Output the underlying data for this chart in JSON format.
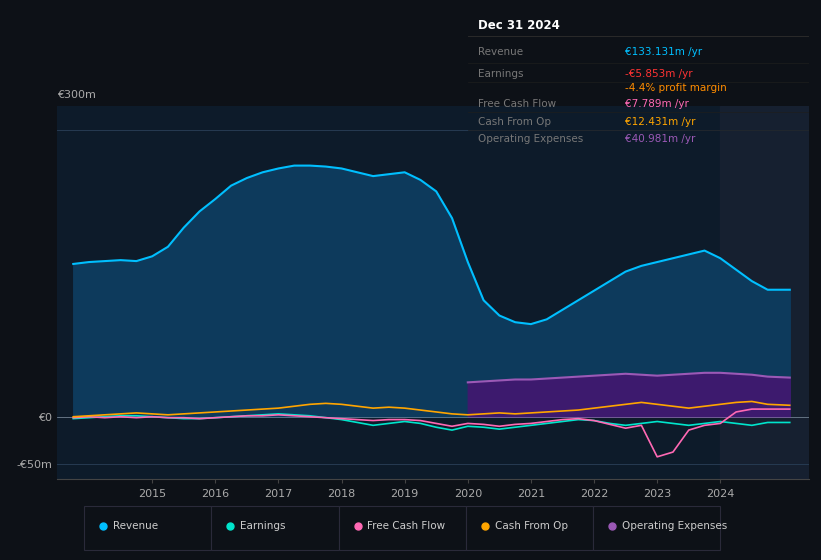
{
  "bg_color": "#0d1117",
  "plot_bg_color": "#0d1b2a",
  "grid_color": "#263a52",
  "title_box": {
    "date": "Dec 31 2024",
    "rows": [
      {
        "label": "Revenue",
        "value": "€133.131m /yr",
        "value_color": "#00bfff"
      },
      {
        "label": "Earnings",
        "value": "-€5.853m /yr",
        "value_color": "#ff3333"
      },
      {
        "label": "",
        "value": "-4.4% profit margin",
        "value_color": "#ff8c00"
      },
      {
        "label": "Free Cash Flow",
        "value": "€7.789m /yr",
        "value_color": "#ff69b4"
      },
      {
        "label": "Cash From Op",
        "value": "€12.431m /yr",
        "value_color": "#ffa500"
      },
      {
        "label": "Operating Expenses",
        "value": "€40.981m /yr",
        "value_color": "#9b59b6"
      }
    ],
    "box_bg": "#080c10",
    "box_border": "#2a2a2a",
    "label_color": "#777777",
    "title_color": "#ffffff"
  },
  "ylim": [
    -65,
    325
  ],
  "ytick_labeled": [
    -50,
    0,
    300
  ],
  "ytick_label_texts": [
    "-€50m",
    "€0",
    "€300m"
  ],
  "xlim": [
    2013.5,
    2025.4
  ],
  "xticks": [
    2015,
    2016,
    2017,
    2018,
    2019,
    2020,
    2021,
    2022,
    2023,
    2024
  ],
  "series": {
    "revenue": {
      "color": "#00bfff",
      "fill_color": "#0d3a5c",
      "label": "Revenue",
      "x": [
        2013.75,
        2014.0,
        2014.25,
        2014.5,
        2014.75,
        2015.0,
        2015.25,
        2015.5,
        2015.75,
        2016.0,
        2016.25,
        2016.5,
        2016.75,
        2017.0,
        2017.25,
        2017.5,
        2017.75,
        2018.0,
        2018.25,
        2018.5,
        2018.75,
        2019.0,
        2019.25,
        2019.5,
        2019.75,
        2020.0,
        2020.25,
        2020.5,
        2020.75,
        2021.0,
        2021.25,
        2021.5,
        2021.75,
        2022.0,
        2022.25,
        2022.5,
        2022.75,
        2023.0,
        2023.25,
        2023.5,
        2023.75,
        2024.0,
        2024.25,
        2024.5,
        2024.75,
        2025.1
      ],
      "y": [
        160,
        162,
        163,
        164,
        163,
        168,
        178,
        198,
        215,
        228,
        242,
        250,
        256,
        260,
        263,
        263,
        262,
        260,
        256,
        252,
        254,
        256,
        248,
        236,
        208,
        162,
        122,
        106,
        99,
        97,
        102,
        112,
        122,
        132,
        142,
        152,
        158,
        162,
        166,
        170,
        174,
        166,
        154,
        142,
        133,
        133
      ]
    },
    "earnings": {
      "color": "#00e5cc",
      "label": "Earnings",
      "x": [
        2013.75,
        2014.0,
        2014.25,
        2014.5,
        2014.75,
        2015.0,
        2015.25,
        2015.5,
        2015.75,
        2016.0,
        2016.25,
        2016.5,
        2016.75,
        2017.0,
        2017.25,
        2017.5,
        2017.75,
        2018.0,
        2018.25,
        2018.5,
        2018.75,
        2019.0,
        2019.25,
        2019.5,
        2019.75,
        2020.0,
        2020.25,
        2020.5,
        2020.75,
        2021.0,
        2021.25,
        2021.5,
        2021.75,
        2022.0,
        2022.25,
        2022.5,
        2022.75,
        2023.0,
        2023.25,
        2023.5,
        2023.75,
        2024.0,
        2024.25,
        2024.5,
        2024.75,
        2025.1
      ],
      "y": [
        -2,
        -1,
        0,
        1,
        1,
        0,
        -1,
        -2,
        -2,
        -1,
        0,
        1,
        2,
        3,
        2,
        1,
        -1,
        -3,
        -6,
        -9,
        -7,
        -5,
        -7,
        -11,
        -14,
        -10,
        -11,
        -13,
        -11,
        -9,
        -7,
        -5,
        -3,
        -4,
        -7,
        -9,
        -7,
        -5,
        -7,
        -9,
        -7,
        -5,
        -7,
        -9,
        -6,
        -6
      ]
    },
    "free_cash_flow": {
      "color": "#ff69b4",
      "label": "Free Cash Flow",
      "x": [
        2013.75,
        2014.0,
        2014.25,
        2014.5,
        2014.75,
        2015.0,
        2015.25,
        2015.5,
        2015.75,
        2016.0,
        2016.25,
        2016.5,
        2016.75,
        2017.0,
        2017.25,
        2017.5,
        2017.75,
        2018.0,
        2018.25,
        2018.5,
        2018.75,
        2019.0,
        2019.25,
        2019.5,
        2019.75,
        2020.0,
        2020.25,
        2020.5,
        2020.75,
        2021.0,
        2021.25,
        2021.5,
        2021.75,
        2022.0,
        2022.25,
        2022.5,
        2022.75,
        2023.0,
        2023.25,
        2023.5,
        2023.75,
        2024.0,
        2024.25,
        2024.5,
        2024.75,
        2025.1
      ],
      "y": [
        -1,
        0,
        -1,
        0,
        -1,
        0,
        -1,
        -1,
        -2,
        -1,
        0,
        1,
        1,
        2,
        1,
        0,
        -1,
        -2,
        -3,
        -4,
        -3,
        -3,
        -4,
        -7,
        -10,
        -7,
        -8,
        -10,
        -8,
        -7,
        -5,
        -3,
        -2,
        -4,
        -8,
        -12,
        -9,
        -42,
        -37,
        -14,
        -9,
        -7,
        5,
        8,
        8,
        8
      ]
    },
    "cash_from_op": {
      "color": "#ffa500",
      "label": "Cash From Op",
      "x": [
        2013.75,
        2014.0,
        2014.25,
        2014.5,
        2014.75,
        2015.0,
        2015.25,
        2015.5,
        2015.75,
        2016.0,
        2016.25,
        2016.5,
        2016.75,
        2017.0,
        2017.25,
        2017.5,
        2017.75,
        2018.0,
        2018.25,
        2018.5,
        2018.75,
        2019.0,
        2019.25,
        2019.5,
        2019.75,
        2020.0,
        2020.25,
        2020.5,
        2020.75,
        2021.0,
        2021.25,
        2021.5,
        2021.75,
        2022.0,
        2022.25,
        2022.5,
        2022.75,
        2023.0,
        2023.25,
        2023.5,
        2023.75,
        2024.0,
        2024.25,
        2024.5,
        2024.75,
        2025.1
      ],
      "y": [
        0,
        1,
        2,
        3,
        4,
        3,
        2,
        3,
        4,
        5,
        6,
        7,
        8,
        9,
        11,
        13,
        14,
        13,
        11,
        9,
        10,
        9,
        7,
        5,
        3,
        2,
        3,
        4,
        3,
        4,
        5,
        6,
        7,
        9,
        11,
        13,
        15,
        13,
        11,
        9,
        11,
        13,
        15,
        16,
        13,
        12
      ]
    },
    "operating_expenses": {
      "color": "#9b59b6",
      "fill_color": "#3d1a6e",
      "label": "Operating Expenses",
      "x": [
        2020.0,
        2020.25,
        2020.5,
        2020.75,
        2021.0,
        2021.25,
        2021.5,
        2021.75,
        2022.0,
        2022.25,
        2022.5,
        2022.75,
        2023.0,
        2023.25,
        2023.5,
        2023.75,
        2024.0,
        2024.25,
        2024.5,
        2024.75,
        2025.1
      ],
      "y": [
        36,
        37,
        38,
        39,
        39,
        40,
        41,
        42,
        43,
        44,
        45,
        44,
        43,
        44,
        45,
        46,
        46,
        45,
        44,
        42,
        41
      ]
    }
  },
  "legend": [
    {
      "label": "Revenue",
      "color": "#00bfff"
    },
    {
      "label": "Earnings",
      "color": "#00e5cc"
    },
    {
      "label": "Free Cash Flow",
      "color": "#ff69b4"
    },
    {
      "label": "Cash From Op",
      "color": "#ffa500"
    },
    {
      "label": "Operating Expenses",
      "color": "#9b59b6"
    }
  ],
  "highlight_x_start": 2024.0,
  "highlight_color": "#162030"
}
